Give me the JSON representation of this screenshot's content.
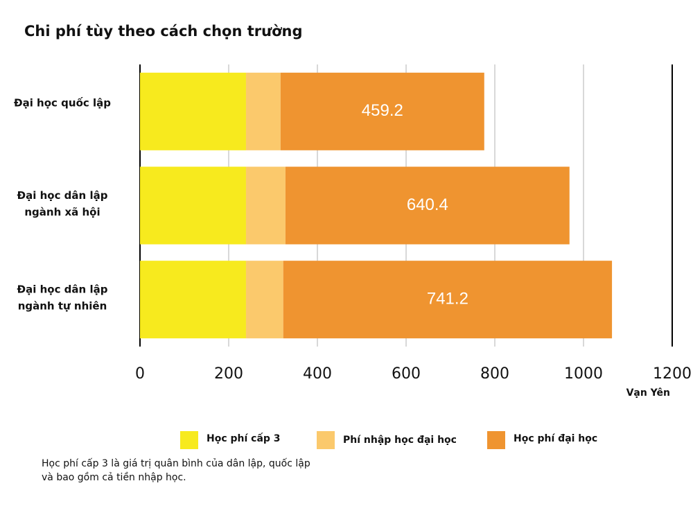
{
  "chart_data": {
    "type": "stacked-barh",
    "title": "Chi phí tùy theo cách chọn trường",
    "categories": [
      [
        "Đại học quốc lập"
      ],
      [
        "Đại học dân lập",
        "ngành xã hội"
      ],
      [
        "Đại học dân lập",
        "ngành tự nhiên"
      ]
    ],
    "series": [
      {
        "name": "Học phí cấp 3",
        "color": "#f7ea1e",
        "values": [
          239,
          239,
          239
        ]
      },
      {
        "name": "Phí nhập học đại học",
        "color": "#fbc96c",
        "values": [
          78,
          89,
          84
        ]
      },
      {
        "name": "Học phí đại học",
        "color": "#ef9430",
        "values": [
          459.2,
          640.4,
          741.2
        ],
        "data_labels": true
      }
    ],
    "xlabel": "Vạn Yên",
    "xlim": [
      0,
      1200
    ],
    "xticks": [
      0,
      200,
      400,
      600,
      800,
      1000,
      1200
    ],
    "grid": true,
    "legend": "bottom",
    "note": [
      "Học phí cấp 3 là giá trị quân bình của dân lập, quốc lập",
      "và bao gồm cả tiền nhập học."
    ]
  }
}
